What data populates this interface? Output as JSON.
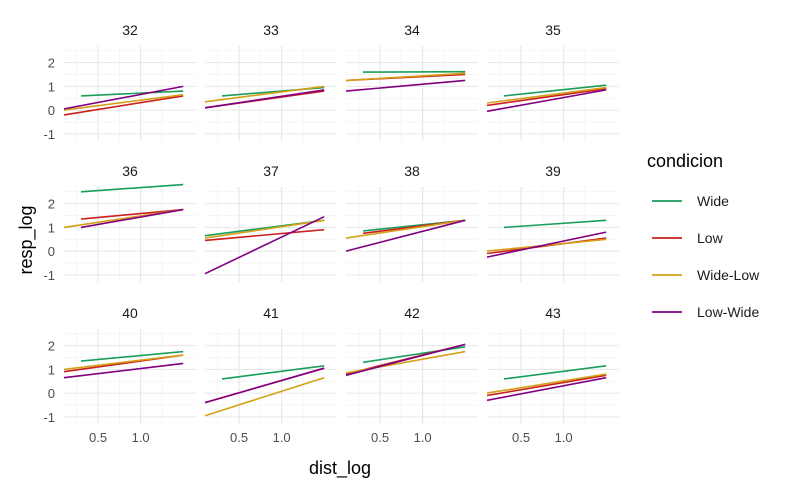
{
  "chart_data": {
    "type": "line",
    "xlabel": "dist_log",
    "ylabel": "resp_log",
    "xlim": [
      0.1,
      1.65
    ],
    "ylim": [
      -1.3,
      2.7
    ],
    "xticks": [
      0.5,
      1.0
    ],
    "xtick_labels": [
      "0.5",
      "1.0"
    ],
    "yticks": [
      -1,
      0,
      1,
      2
    ],
    "ytick_labels": [
      "-1",
      "0",
      "1",
      "2"
    ],
    "grid": true,
    "legend": {
      "title": "condicion",
      "position": "right",
      "entries": [
        {
          "label": "Wide",
          "color": "#1a9e5c"
        },
        {
          "label": "Low",
          "color": "#cc1f1f"
        },
        {
          "label": "Wide-Low",
          "color": "#d4a017"
        },
        {
          "label": "Low-Wide",
          "color": "#800080"
        }
      ]
    },
    "panels": [
      {
        "label": "32",
        "series": [
          {
            "name": "Wide",
            "x": [
              0.3,
              1.5
            ],
            "y": [
              0.6,
              0.8
            ]
          },
          {
            "name": "Low",
            "x": [
              0.1,
              1.5
            ],
            "y": [
              -0.2,
              0.6
            ]
          },
          {
            "name": "Wide-Low",
            "x": [
              0.1,
              1.5
            ],
            "y": [
              0.0,
              0.65
            ]
          },
          {
            "name": "Low-Wide",
            "x": [
              0.1,
              1.5
            ],
            "y": [
              0.05,
              1.0
            ]
          }
        ]
      },
      {
        "label": "33",
        "series": [
          {
            "name": "Wide",
            "x": [
              0.3,
              1.5
            ],
            "y": [
              0.6,
              0.95
            ]
          },
          {
            "name": "Low",
            "x": [
              0.1,
              1.5
            ],
            "y": [
              0.1,
              0.8
            ]
          },
          {
            "name": "Wide-Low",
            "x": [
              0.1,
              1.5
            ],
            "y": [
              0.35,
              1.0
            ]
          },
          {
            "name": "Low-Wide",
            "x": [
              0.1,
              1.5
            ],
            "y": [
              0.1,
              0.85
            ]
          }
        ]
      },
      {
        "label": "34",
        "series": [
          {
            "name": "Wide",
            "x": [
              0.3,
              1.5
            ],
            "y": [
              1.6,
              1.62
            ]
          },
          {
            "name": "Low",
            "x": [
              0.1,
              1.5
            ],
            "y": [
              1.25,
              1.5
            ]
          },
          {
            "name": "Wide-Low",
            "x": [
              0.1,
              1.5
            ],
            "y": [
              1.25,
              1.55
            ]
          },
          {
            "name": "Low-Wide",
            "x": [
              0.1,
              1.5
            ],
            "y": [
              0.8,
              1.25
            ]
          }
        ]
      },
      {
        "label": "35",
        "series": [
          {
            "name": "Wide",
            "x": [
              0.3,
              1.5
            ],
            "y": [
              0.6,
              1.05
            ]
          },
          {
            "name": "Low",
            "x": [
              0.1,
              1.5
            ],
            "y": [
              0.2,
              0.9
            ]
          },
          {
            "name": "Wide-Low",
            "x": [
              0.1,
              1.5
            ],
            "y": [
              0.3,
              0.95
            ]
          },
          {
            "name": "Low-Wide",
            "x": [
              0.1,
              1.5
            ],
            "y": [
              -0.05,
              0.85
            ]
          }
        ]
      },
      {
        "label": "36",
        "series": [
          {
            "name": "Wide",
            "x": [
              0.3,
              1.5
            ],
            "y": [
              2.5,
              2.8
            ]
          },
          {
            "name": "Low",
            "x": [
              0.3,
              1.5
            ],
            "y": [
              1.35,
              1.75
            ]
          },
          {
            "name": "Wide-Low",
            "x": [
              0.1,
              1.5
            ],
            "y": [
              1.0,
              1.75
            ]
          },
          {
            "name": "Low-Wide",
            "x": [
              0.3,
              1.5
            ],
            "y": [
              1.0,
              1.75
            ]
          }
        ]
      },
      {
        "label": "37",
        "series": [
          {
            "name": "Wide",
            "x": [
              0.1,
              1.5
            ],
            "y": [
              0.65,
              1.3
            ]
          },
          {
            "name": "Low",
            "x": [
              0.1,
              1.5
            ],
            "y": [
              0.45,
              0.9
            ]
          },
          {
            "name": "Wide-Low",
            "x": [
              0.1,
              1.5
            ],
            "y": [
              0.55,
              1.3
            ]
          },
          {
            "name": "Low-Wide",
            "x": [
              0.1,
              1.5
            ],
            "y": [
              -0.95,
              1.45
            ]
          }
        ]
      },
      {
        "label": "38",
        "series": [
          {
            "name": "Wide",
            "x": [
              0.3,
              1.5
            ],
            "y": [
              0.85,
              1.3
            ]
          },
          {
            "name": "Low",
            "x": [
              0.3,
              1.5
            ],
            "y": [
              0.75,
              1.3
            ]
          },
          {
            "name": "Wide-Low",
            "x": [
              0.1,
              1.5
            ],
            "y": [
              0.55,
              1.3
            ]
          },
          {
            "name": "Low-Wide",
            "x": [
              0.1,
              1.5
            ],
            "y": [
              0.0,
              1.3
            ]
          }
        ]
      },
      {
        "label": "39",
        "series": [
          {
            "name": "Wide",
            "x": [
              0.3,
              1.5
            ],
            "y": [
              1.0,
              1.3
            ]
          },
          {
            "name": "Low",
            "x": [
              0.1,
              1.5
            ],
            "y": [
              -0.1,
              0.55
            ]
          },
          {
            "name": "Wide-Low",
            "x": [
              0.1,
              1.5
            ],
            "y": [
              0.0,
              0.5
            ]
          },
          {
            "name": "Low-Wide",
            "x": [
              0.1,
              1.5
            ],
            "y": [
              -0.25,
              0.8
            ]
          }
        ]
      },
      {
        "label": "40",
        "series": [
          {
            "name": "Wide",
            "x": [
              0.3,
              1.5
            ],
            "y": [
              1.35,
              1.75
            ]
          },
          {
            "name": "Low",
            "x": [
              0.1,
              1.5
            ],
            "y": [
              0.9,
              1.6
            ]
          },
          {
            "name": "Wide-Low",
            "x": [
              0.1,
              1.5
            ],
            "y": [
              1.0,
              1.6
            ]
          },
          {
            "name": "Low-Wide",
            "x": [
              0.1,
              1.5
            ],
            "y": [
              0.65,
              1.25
            ]
          }
        ]
      },
      {
        "label": "41",
        "series": [
          {
            "name": "Wide",
            "x": [
              0.3,
              1.5
            ],
            "y": [
              0.6,
              1.15
            ]
          },
          {
            "name": "Low",
            "x": [
              0.1,
              1.5
            ],
            "y": [
              -0.4,
              1.05
            ]
          },
          {
            "name": "Wide-Low",
            "x": [
              0.1,
              1.5
            ],
            "y": [
              -0.95,
              0.65
            ]
          },
          {
            "name": "Low-Wide",
            "x": [
              0.1,
              1.5
            ],
            "y": [
              -0.4,
              1.05
            ]
          }
        ]
      },
      {
        "label": "42",
        "series": [
          {
            "name": "Wide",
            "x": [
              0.3,
              1.5
            ],
            "y": [
              1.3,
              1.95
            ]
          },
          {
            "name": "Low",
            "x": [
              0.1,
              1.5
            ],
            "y": [
              0.8,
              2.05
            ]
          },
          {
            "name": "Wide-Low",
            "x": [
              0.1,
              1.5
            ],
            "y": [
              0.85,
              1.75
            ]
          },
          {
            "name": "Low-Wide",
            "x": [
              0.1,
              1.5
            ],
            "y": [
              0.75,
              2.05
            ]
          }
        ]
      },
      {
        "label": "43",
        "series": [
          {
            "name": "Wide",
            "x": [
              0.3,
              1.5
            ],
            "y": [
              0.6,
              1.15
            ]
          },
          {
            "name": "Low",
            "x": [
              0.1,
              1.5
            ],
            "y": [
              -0.1,
              0.75
            ]
          },
          {
            "name": "Wide-Low",
            "x": [
              0.1,
              1.5
            ],
            "y": [
              0.0,
              0.8
            ]
          },
          {
            "name": "Low-Wide",
            "x": [
              0.1,
              1.5
            ],
            "y": [
              -0.3,
              0.65
            ]
          }
        ]
      }
    ]
  }
}
